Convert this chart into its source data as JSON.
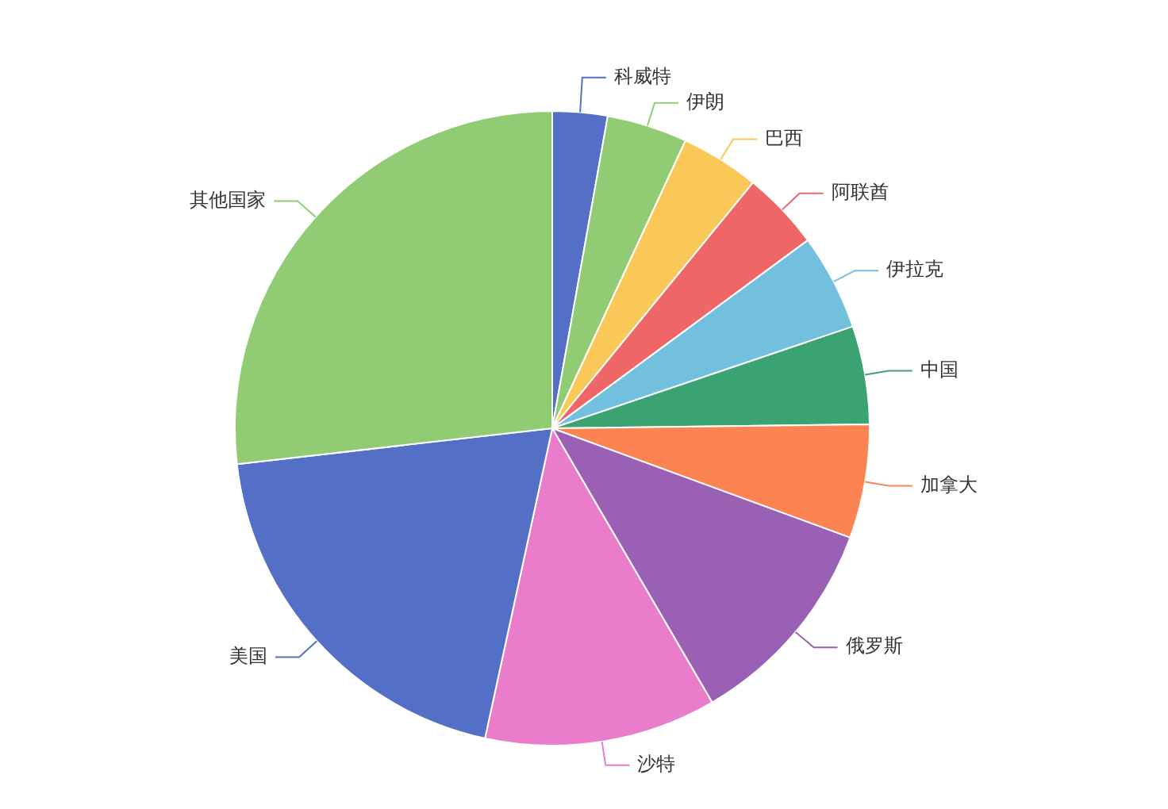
{
  "chart_data": {
    "type": "pie",
    "categories": [
      "科威特",
      "伊朗",
      "巴西",
      "阿联酋",
      "伊拉克",
      "中国",
      "加拿大",
      "俄罗斯",
      "沙特",
      "美国",
      "其他国家"
    ],
    "values": [
      2.8,
      4.1,
      4.0,
      4.0,
      4.9,
      5.0,
      5.8,
      11.0,
      11.8,
      19.8,
      26.8
    ],
    "colors": [
      "#5470c6",
      "#91cc75",
      "#fac858",
      "#ee6666",
      "#73c0de",
      "#3ba272",
      "#fc8452",
      "#9a60b4",
      "#ea7ccc",
      "#5470c6",
      "#91cc75"
    ]
  }
}
